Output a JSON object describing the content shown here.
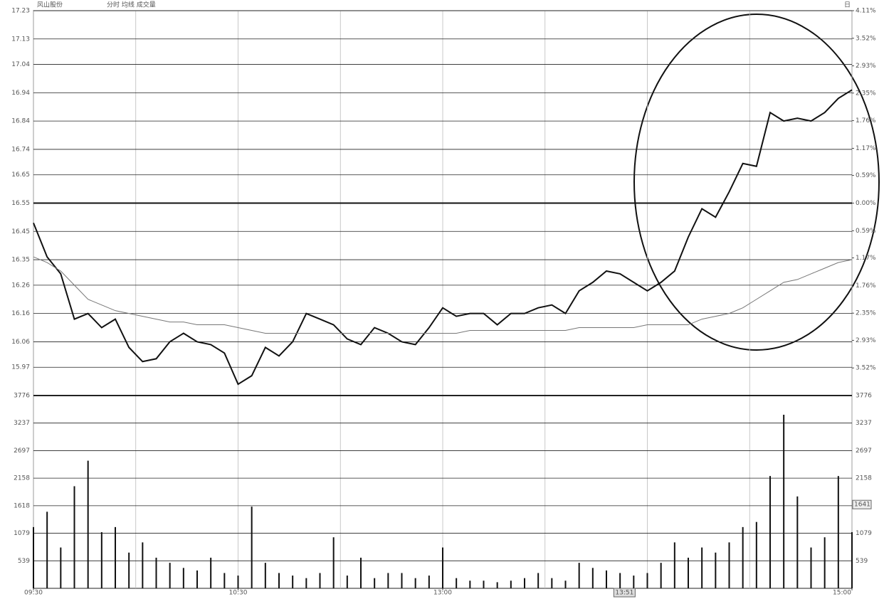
{
  "stock_name": "风山股份",
  "menu": "分时 均线 成交量",
  "period": "日",
  "chart_data": [
    {
      "type": "line",
      "x": [
        0,
        4,
        8,
        12,
        16,
        20,
        24,
        28,
        32,
        36,
        40,
        44,
        48,
        52,
        56,
        60,
        64,
        68,
        72,
        76,
        80,
        84,
        88,
        92,
        96,
        100,
        104,
        108,
        112,
        116,
        120,
        124,
        128,
        132,
        136,
        140,
        144,
        148,
        152,
        156,
        160,
        164,
        168,
        172,
        176,
        180,
        184,
        188,
        192,
        196,
        200,
        204,
        208,
        212,
        216,
        220,
        224,
        228,
        232,
        236,
        240
      ],
      "xlim": [
        0,
        240
      ],
      "xgrid": [
        0,
        30,
        60,
        90,
        120,
        150,
        180,
        210,
        240
      ],
      "xticks": [
        {
          "value": 0,
          "label": "09:30"
        },
        {
          "value": 60,
          "label": "10:30"
        },
        {
          "value": 120,
          "label": "13:00"
        },
        {
          "value": 240,
          "label": "15:00"
        }
      ],
      "cursor": {
        "value": 171,
        "label": "13:51"
      },
      "ylim": [
        15.87,
        17.23
      ],
      "yticks": [
        17.23,
        17.13,
        17.04,
        16.94,
        16.84,
        16.74,
        16.65,
        16.55,
        16.45,
        16.35,
        16.26,
        16.16,
        16.06,
        15.97
      ],
      "reference_line": 16.55,
      "y2lim": [
        -4.11,
        4.11
      ],
      "y2ticks": [
        {
          "value": 4.11,
          "label": "4.11%"
        },
        {
          "value": 3.52,
          "label": "3.52%"
        },
        {
          "value": 2.93,
          "label": "2.93%"
        },
        {
          "value": 2.35,
          "label": "2.35%"
        },
        {
          "value": 1.76,
          "label": "1.76%"
        },
        {
          "value": 1.17,
          "label": "1.17%"
        },
        {
          "value": 0.59,
          "label": "0.59%"
        },
        {
          "value": 0,
          "label": "0.00%"
        },
        {
          "value": -0.59,
          "label": "0.59%"
        },
        {
          "value": -1.17,
          "label": "1.17%"
        },
        {
          "value": -1.76,
          "label": "1.76%"
        },
        {
          "value": -2.35,
          "label": "2.35%"
        },
        {
          "value": -2.93,
          "label": "2.93%"
        },
        {
          "value": -3.52,
          "label": "3.52%"
        }
      ],
      "series": [
        {
          "color": "#111111",
          "width": 2,
          "values": [
            16.48,
            16.36,
            16.3,
            16.14,
            16.16,
            16.11,
            16.14,
            16.04,
            15.99,
            16.0,
            16.06,
            16.09,
            16.06,
            16.05,
            16.02,
            15.91,
            15.94,
            16.04,
            16.01,
            16.06,
            16.16,
            16.14,
            16.12,
            16.07,
            16.05,
            16.11,
            16.09,
            16.06,
            16.05,
            16.11,
            16.18,
            16.15,
            16.16,
            16.16,
            16.12,
            16.16,
            16.16,
            16.18,
            16.19,
            16.16,
            16.24,
            16.27,
            16.31,
            16.3,
            16.27,
            16.24,
            16.27,
            16.31,
            16.43,
            16.53,
            16.5,
            16.59,
            16.69,
            16.68,
            16.87,
            16.84,
            16.85,
            16.84,
            16.87,
            16.92,
            16.95
          ]
        },
        {
          "color": "#777777",
          "width": 1,
          "values": [
            16.36,
            16.34,
            16.31,
            16.26,
            16.21,
            16.19,
            16.17,
            16.16,
            16.15,
            16.14,
            16.13,
            16.13,
            16.12,
            16.12,
            16.12,
            16.11,
            16.1,
            16.09,
            16.09,
            16.09,
            16.09,
            16.09,
            16.09,
            16.09,
            16.09,
            16.09,
            16.09,
            16.09,
            16.09,
            16.09,
            16.09,
            16.09,
            16.1,
            16.1,
            16.1,
            16.1,
            16.1,
            16.1,
            16.1,
            16.1,
            16.11,
            16.11,
            16.11,
            16.11,
            16.11,
            16.12,
            16.12,
            16.12,
            16.12,
            16.14,
            16.15,
            16.16,
            16.18,
            16.21,
            16.24,
            16.27,
            16.28,
            16.3,
            16.32,
            16.34,
            16.35
          ]
        }
      ]
    },
    {
      "type": "bar",
      "x": [
        0,
        4,
        8,
        12,
        16,
        20,
        24,
        28,
        32,
        36,
        40,
        44,
        48,
        52,
        56,
        60,
        64,
        68,
        72,
        76,
        80,
        84,
        88,
        92,
        96,
        100,
        104,
        108,
        112,
        116,
        120,
        124,
        128,
        132,
        136,
        140,
        144,
        148,
        152,
        156,
        160,
        164,
        168,
        172,
        176,
        180,
        184,
        188,
        192,
        196,
        200,
        204,
        208,
        212,
        216,
        220,
        224,
        228,
        232,
        236,
        240
      ],
      "xlim": [
        0,
        240
      ],
      "ylim": [
        0,
        3776
      ],
      "yticks": [
        539,
        1079,
        1618,
        2158,
        2697,
        3237,
        3776
      ],
      "current_label": "1641",
      "color": "#111111",
      "values": [
        1200,
        1500,
        800,
        2000,
        2500,
        1100,
        1200,
        700,
        900,
        600,
        500,
        400,
        350,
        600,
        300,
        250,
        1600,
        500,
        300,
        250,
        200,
        300,
        1000,
        250,
        600,
        200,
        300,
        300,
        200,
        250,
        800,
        200,
        150,
        150,
        120,
        150,
        200,
        300,
        200,
        150,
        500,
        400,
        350,
        300,
        250,
        300,
        500,
        900,
        600,
        800,
        700,
        900,
        1200,
        1300,
        2200,
        3400,
        1800,
        800,
        1000,
        2200,
        1100
      ]
    }
  ]
}
